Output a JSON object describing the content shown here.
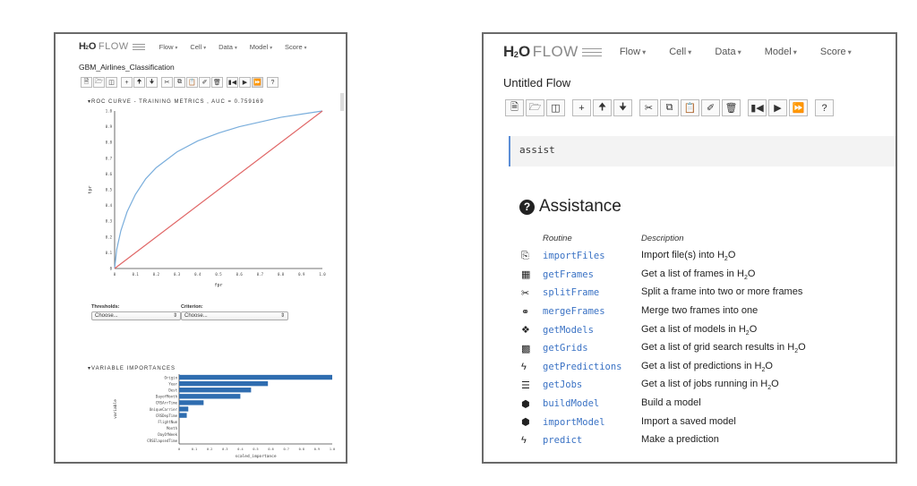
{
  "left_window": {
    "logo": {
      "h": "H",
      "sub": "2",
      "o": "O",
      "flow": "FLOW"
    },
    "menu": [
      "Flow",
      "Cell",
      "Data",
      "Model",
      "Score"
    ],
    "flow_title": "GBM_Airlines_Classification",
    "toolbar_icons": [
      "new-file-icon",
      "open-folder-icon",
      "save-icon",
      "insert-cell-icon",
      "move-up-icon",
      "move-down-icon",
      "cut-icon",
      "copy-icon",
      "paste-icon",
      "clear-icon",
      "delete-icon",
      "step-icon",
      "run-icon",
      "run-all-icon",
      "help-icon"
    ],
    "roc_title": "ROC CURVE - TRAINING METRICS , AUC = 0.759169",
    "thresholds_label": "Thresholds:",
    "thresholds_value": "Choose...",
    "criterion_label": "Criterion:",
    "criterion_value": "Choose...",
    "vi_title": "VARIABLE IMPORTANCES"
  },
  "chart_data": [
    {
      "type": "line",
      "title": "ROC CURVE - TRAINING METRICS , AUC = 0.759169",
      "xlabel": "fpr",
      "ylabel": "tpr",
      "xlim": [
        0,
        1
      ],
      "ylim": [
        0,
        1
      ],
      "ticks": [
        "0",
        "0.1",
        "0.2",
        "0.3",
        "0.4",
        "0.5",
        "0.6",
        "0.7",
        "0.8",
        "0.9",
        "1.0"
      ],
      "series": [
        {
          "color": "#7aaedc",
          "x": [
            0,
            0.01,
            0.03,
            0.06,
            0.1,
            0.15,
            0.2,
            0.3,
            0.4,
            0.5,
            0.6,
            0.7,
            0.8,
            0.9,
            1.0
          ],
          "y": [
            0,
            0.12,
            0.24,
            0.36,
            0.47,
            0.57,
            0.64,
            0.74,
            0.81,
            0.86,
            0.9,
            0.93,
            0.96,
            0.98,
            1.0
          ]
        },
        {
          "color": "#e06666",
          "x": [
            0,
            1
          ],
          "y": [
            0,
            1
          ]
        }
      ]
    },
    {
      "type": "bar",
      "orientation": "horizontal",
      "xlabel": "scaled_importance",
      "ylabel": "variable",
      "xlim": [
        0,
        1
      ],
      "ticks": [
        "0",
        "0.1",
        "0.2",
        "0.3",
        "0.4",
        "0.5",
        "0.6",
        "0.7",
        "0.8",
        "0.9",
        "1.0"
      ],
      "color": "#2f6db0",
      "categories": [
        "Origin",
        "Year",
        "Dest",
        "DayofMonth",
        "CRSArrTime",
        "UniqueCarrier",
        "CRSDepTime",
        "FlightNum",
        "Month",
        "DayOfWeek",
        "CRSElapsedTime"
      ],
      "values": [
        1.0,
        0.58,
        0.47,
        0.4,
        0.16,
        0.06,
        0.05,
        0.0,
        0.0,
        0.0,
        0.0
      ]
    }
  ],
  "right_window": {
    "logo": {
      "h": "H",
      "sub": "2",
      "o": "O",
      "flow": "FLOW"
    },
    "menu": [
      "Flow",
      "Cell",
      "Data",
      "Model",
      "Score"
    ],
    "flow_title": "Untitled Flow",
    "toolbar_icons": [
      "new-file-icon",
      "open-folder-icon",
      "save-icon",
      "insert-cell-icon",
      "move-up-icon",
      "move-down-icon",
      "cut-icon",
      "copy-icon",
      "paste-icon",
      "clear-icon",
      "delete-icon",
      "step-icon",
      "run-icon",
      "run-all-icon",
      "help-icon"
    ],
    "cell_input": "assist",
    "assistance_title": "Assistance",
    "col_routine": "Routine",
    "col_description": "Description",
    "routines": [
      {
        "icon": "import-files-icon",
        "glyph": "⎘",
        "name": "importFiles",
        "desc_pre": "Import file(s) into H",
        "desc_sub": "2",
        "desc_post": "O"
      },
      {
        "icon": "table-icon",
        "glyph": "▦",
        "name": "getFrames",
        "desc_pre": "Get a list of frames in H",
        "desc_sub": "2",
        "desc_post": "O"
      },
      {
        "icon": "scissors-icon",
        "glyph": "✂",
        "name": "splitFrame",
        "desc_pre": "Split a frame into two or more frames",
        "desc_sub": "",
        "desc_post": ""
      },
      {
        "icon": "link-icon",
        "glyph": "⚭",
        "name": "mergeFrames",
        "desc_pre": "Merge two frames into one",
        "desc_sub": "",
        "desc_post": ""
      },
      {
        "icon": "cubes-icon",
        "glyph": "❖",
        "name": "getModels",
        "desc_pre": "Get a list of models in H",
        "desc_sub": "2",
        "desc_post": "O"
      },
      {
        "icon": "grid-icon",
        "glyph": "▩",
        "name": "getGrids",
        "desc_pre": "Get a list of grid search results in H",
        "desc_sub": "2",
        "desc_post": "O"
      },
      {
        "icon": "bolt-icon",
        "glyph": "ϟ",
        "name": "getPredictions",
        "desc_pre": "Get a list of predictions in H",
        "desc_sub": "2",
        "desc_post": "O"
      },
      {
        "icon": "tasks-icon",
        "glyph": "☰",
        "name": "getJobs",
        "desc_pre": "Get a list of jobs running in H",
        "desc_sub": "2",
        "desc_post": "O"
      },
      {
        "icon": "cube-icon",
        "glyph": "⬢",
        "name": "buildModel",
        "desc_pre": "Build a model",
        "desc_sub": "",
        "desc_post": ""
      },
      {
        "icon": "cube-icon",
        "glyph": "⬢",
        "name": "importModel",
        "desc_pre": "Import a saved model",
        "desc_sub": "",
        "desc_post": ""
      },
      {
        "icon": "bolt-icon",
        "glyph": "ϟ",
        "name": "predict",
        "desc_pre": "Make a prediction",
        "desc_sub": "",
        "desc_post": ""
      }
    ]
  }
}
